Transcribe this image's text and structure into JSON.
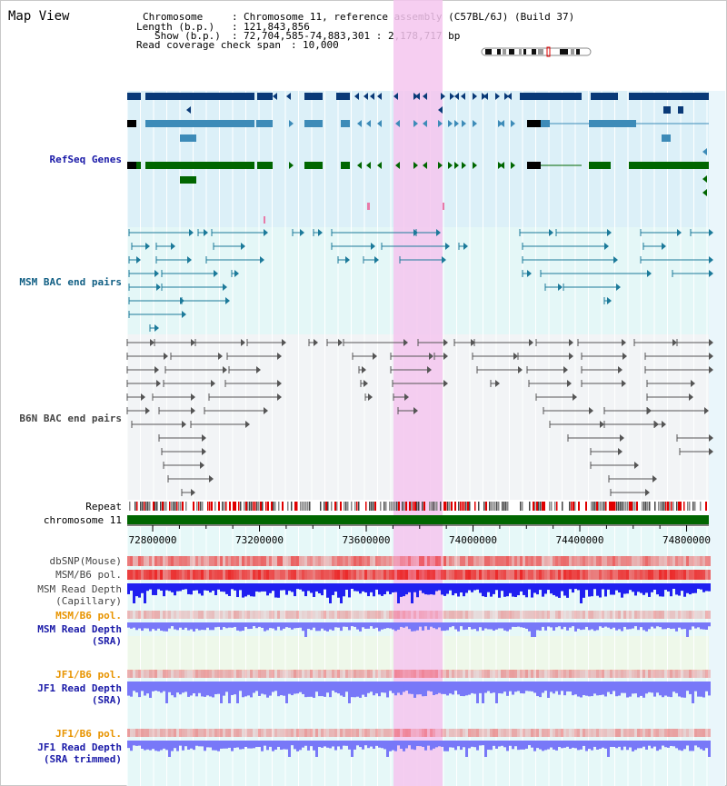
{
  "header": {
    "view_title": "Map View",
    "chromosome_label": "Chromosome",
    "chromosome_value": "Chromosome 11, reference assembly (C57BL/6J) (Build 37)",
    "length_label": "Length (b.p.)",
    "length_value": "121,843,856",
    "show_label": "Show (b.p.)",
    "show_value": "72,704,585-74,883,301 : 2,178,717 bp",
    "coverage_label": "Read coverage check span",
    "coverage_value": "10,000"
  },
  "tracks": {
    "refseq": "RefSeq Genes",
    "msm_bac": "MSM BAC end pairs",
    "b6n_bac": "B6N BAC end pairs",
    "repeat": "Repeat",
    "chromosome": "chromosome 11",
    "dbsnp": "dbSNP(Mouse)",
    "msm_b6_pol": "MSM/B6 pol.",
    "msm_depth_cap_1": "MSM Read Depth",
    "msm_depth_cap_2": "(Capillary)",
    "msm_b6_pol_2": "MSM/B6 pol.",
    "msm_depth_sra_1": "MSM Read Depth",
    "msm_depth_sra_2": "(SRA)",
    "jf1_pol_1": "JF1/B6 pol.",
    "jf1_depth_sra_1": "JF1 Read Depth",
    "jf1_depth_sra_2": "(SRA)",
    "jf1_pol_2": "JF1/B6 pol.",
    "jf1_depth_trim_1": "JF1 Read Depth",
    "jf1_depth_trim_2": "(SRA trimmed)"
  },
  "axis": {
    "ticks": [
      "72800000",
      "73200000",
      "73600000",
      "74000000",
      "74400000",
      "74800000"
    ]
  },
  "colors": {
    "refseq_dark": "#0a3a78",
    "refseq_light": "#3d8bb8",
    "refseq_green": "#006600",
    "msm_bac": "#1c7a9a",
    "b6n_bac": "#555555",
    "repeat_red": "#e00000",
    "chromosome_green": "#006600",
    "highlight": "#f5c6ef",
    "depth_dark": "#2020f0",
    "depth_light": "#7878f8"
  }
}
